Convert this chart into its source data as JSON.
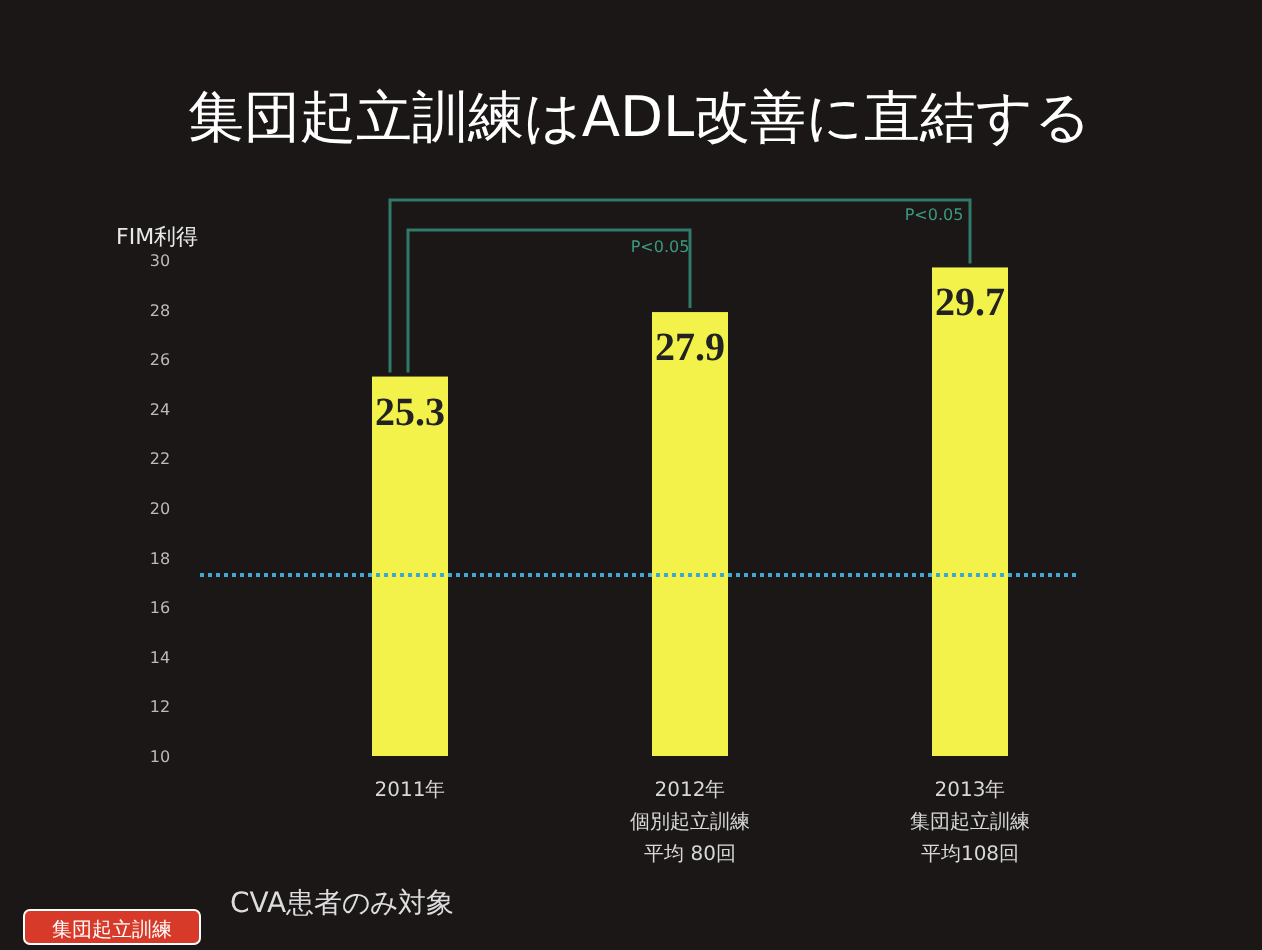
{
  "chart_data": {
    "type": "bar",
    "title": "集団起立訓練はADL改善に直結する",
    "ylabel": "FIM利得",
    "categories": [
      "2011年",
      "2012年",
      "2013年"
    ],
    "values": [
      25.3,
      27.9,
      29.7
    ],
    "color": "#f2f24a",
    "ylim": [
      10,
      30
    ],
    "yticks": [
      10,
      12,
      14,
      16,
      18,
      20,
      22,
      24,
      26,
      28,
      30
    ],
    "data_labels": true,
    "grid": false,
    "ref_lines": [
      {
        "axis": "y",
        "value": 17.3,
        "color": "#3fa7d0",
        "line_style": "dotted"
      }
    ],
    "annotations": [
      "P<0.05",
      "P<0.05",
      "CVA患者のみ対象",
      "集団起立訓練",
      "個別起立訓練",
      "平均 80回",
      "集団起立訓練",
      "平均108回"
    ]
  }
}
